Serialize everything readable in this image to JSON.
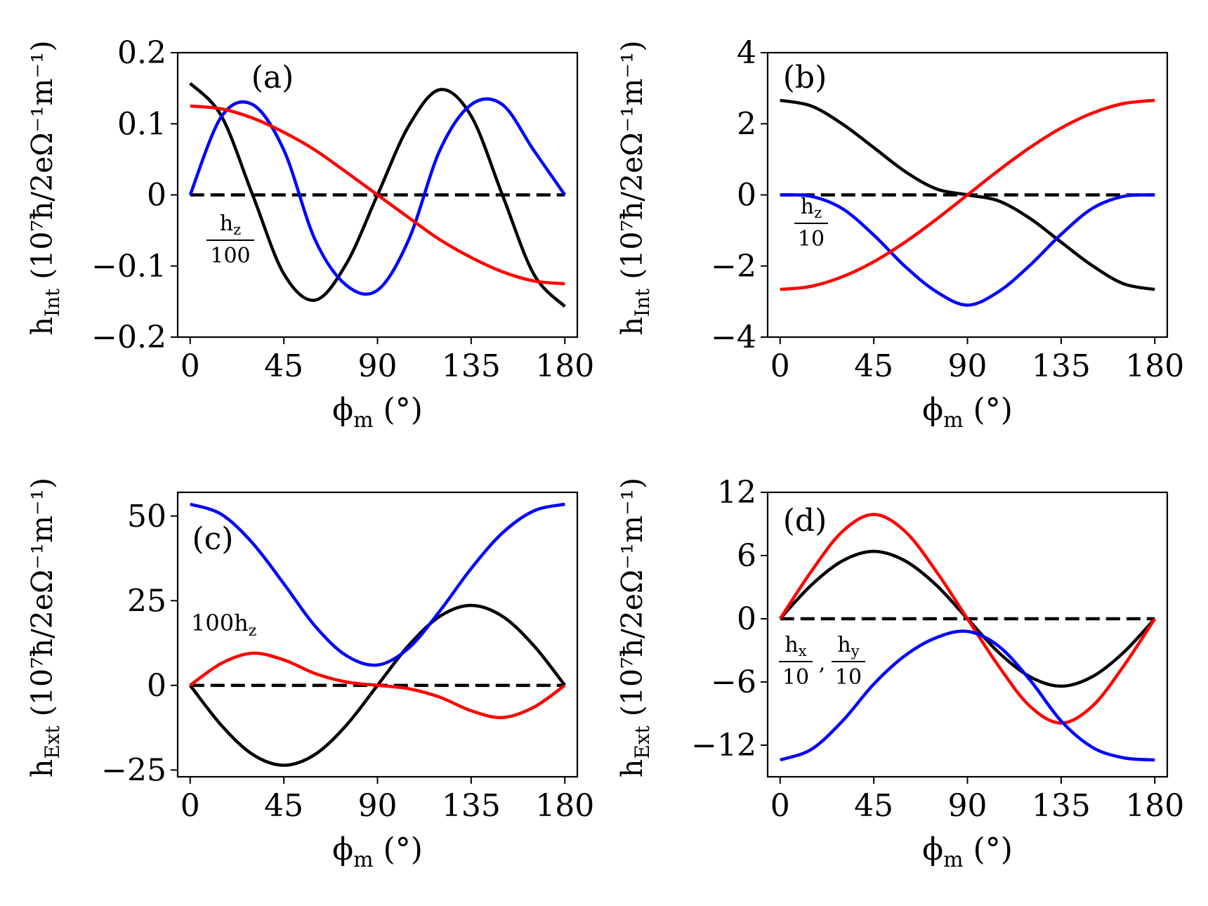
{
  "chart_data": [
    {
      "id": "a",
      "type": "line",
      "panel_label": "(a)",
      "xlabel": "ϕm (°)",
      "xlabel_main": "ϕ",
      "xlabel_sub": "m",
      "xlabel_unit": " (°)",
      "ylabel": "hInt (10⁷ħ/2eΩ⁻¹m⁻¹)",
      "ylabel_main": "h",
      "ylabel_sub": "Int",
      "ylabel_unit": " (10⁷ħ/2eΩ⁻¹m⁻¹)",
      "xlim": [
        -6,
        186
      ],
      "ylim": [
        -0.2,
        0.2
      ],
      "xticks": [
        0,
        45,
        90,
        135,
        180
      ],
      "xtick_labels": [
        "0",
        "45",
        "90",
        "135",
        "180"
      ],
      "yticks": [
        0.2,
        0.1,
        0,
        -0.1,
        -0.2
      ],
      "ytick_labels": [
        "0.2",
        "0.1",
        "0",
        "−0.1",
        "−0.2"
      ],
      "annotation": {
        "kind": "frac",
        "top": "hz",
        "top_main": "h",
        "top_sub": "z",
        "bottom": "100"
      },
      "x": [
        0,
        15,
        30,
        45,
        60,
        75,
        90,
        105,
        120,
        135,
        150,
        165,
        180
      ],
      "series": [
        {
          "name": "black",
          "color": "#000000",
          "values": [
            0.157,
            0.111,
            0,
            -0.111,
            -0.148,
            -0.097,
            0,
            0.097,
            0.148,
            0.111,
            0,
            -0.111,
            -0.157
          ]
        },
        {
          "name": "blue",
          "color": "#0000ff",
          "values": [
            0,
            0.11,
            0.127,
            0.063,
            -0.063,
            -0.127,
            -0.134,
            -0.063,
            0.063,
            0.127,
            0.127,
            0.063,
            0
          ]
        },
        {
          "name": "red",
          "color": "#ff0000",
          "values": [
            0.125,
            0.121,
            0.108,
            0.088,
            0.063,
            0.032,
            0,
            -0.032,
            -0.063,
            -0.088,
            -0.108,
            -0.121,
            -0.125
          ]
        },
        {
          "name": "zero",
          "color": "#000000",
          "dashed": true,
          "values": [
            0,
            0,
            0,
            0,
            0,
            0,
            0,
            0,
            0,
            0,
            0,
            0,
            0
          ]
        }
      ]
    },
    {
      "id": "b",
      "type": "line",
      "panel_label": "(b)",
      "xlabel": "ϕm (°)",
      "xlabel_main": "ϕ",
      "xlabel_sub": "m",
      "xlabel_unit": " (°)",
      "ylabel": "hInt (10⁷ħ/2eΩ⁻¹m⁻¹)",
      "ylabel_main": "h",
      "ylabel_sub": "Int",
      "ylabel_unit": " (10⁷ħ/2eΩ⁻¹m⁻¹)",
      "xlim": [
        -6,
        186
      ],
      "ylim": [
        -4,
        4
      ],
      "xticks": [
        0,
        45,
        90,
        135,
        180
      ],
      "xtick_labels": [
        "0",
        "45",
        "90",
        "135",
        "180"
      ],
      "yticks": [
        4,
        2,
        0,
        -2,
        -4
      ],
      "ytick_labels": [
        "4",
        "2",
        "0",
        "−2",
        "−4"
      ],
      "annotation": {
        "kind": "frac",
        "top": "hz",
        "top_main": "h",
        "top_sub": "z",
        "bottom": "10"
      },
      "x": [
        0,
        15,
        30,
        45,
        60,
        75,
        90,
        105,
        120,
        135,
        150,
        165,
        180
      ],
      "series": [
        {
          "name": "black",
          "color": "#000000",
          "values": [
            2.66,
            2.5,
            1.99,
            1.33,
            0.66,
            0.17,
            0,
            -0.17,
            -0.66,
            -1.33,
            -1.99,
            -2.5,
            -2.66
          ]
        },
        {
          "name": "blue",
          "color": "#0000ff",
          "values": [
            0,
            -0.04,
            -0.39,
            -1.13,
            -2.01,
            -2.72,
            -3.1,
            -2.72,
            -1.98,
            -1.11,
            -0.38,
            -0.04,
            0
          ]
        },
        {
          "name": "red",
          "color": "#ff0000",
          "values": [
            -2.66,
            -2.57,
            -2.3,
            -1.88,
            -1.33,
            -0.69,
            0,
            0.69,
            1.33,
            1.88,
            2.3,
            2.57,
            2.66
          ]
        },
        {
          "name": "zero",
          "color": "#000000",
          "dashed": true,
          "values": [
            0,
            0,
            0,
            0,
            0,
            0,
            0,
            0,
            0,
            0,
            0,
            0,
            0
          ]
        }
      ]
    },
    {
      "id": "c",
      "type": "line",
      "panel_label": "(c)",
      "xlabel": "ϕm (°)",
      "xlabel_main": "ϕ",
      "xlabel_sub": "m",
      "xlabel_unit": " (°)",
      "ylabel": "hExt (10⁷ħ/2eΩ⁻¹m⁻¹)",
      "ylabel_main": "h",
      "ylabel_sub": "Ext",
      "ylabel_unit": " (10⁷ħ/2eΩ⁻¹m⁻¹)",
      "xlim": [
        -6,
        186
      ],
      "ylim": [
        -27,
        57
      ],
      "xticks": [
        0,
        45,
        90,
        135,
        180
      ],
      "xtick_labels": [
        "0",
        "45",
        "90",
        "135",
        "180"
      ],
      "yticks": [
        50,
        25,
        0,
        -25
      ],
      "ytick_labels": [
        "50",
        "25",
        "0",
        "−25"
      ],
      "annotation": {
        "kind": "text",
        "main": "100h",
        "sub": "z"
      },
      "x": [
        0,
        15,
        30,
        45,
        60,
        75,
        90,
        105,
        120,
        135,
        150,
        165,
        180
      ],
      "series": [
        {
          "name": "black",
          "color": "#000000",
          "values": [
            0,
            -11.8,
            -20.4,
            -23.6,
            -20.4,
            -11.8,
            0,
            11.8,
            20.4,
            23.6,
            20.4,
            11.8,
            0
          ]
        },
        {
          "name": "blue",
          "color": "#0000ff",
          "values": [
            53.5,
            50.5,
            42.0,
            30.0,
            17.5,
            8.8,
            6.0,
            11.0,
            22.0,
            34.5,
            45.0,
            51.5,
            53.5
          ]
        },
        {
          "name": "red",
          "color": "#ff0000",
          "values": [
            0,
            6.5,
            9.5,
            7.5,
            3.5,
            1.0,
            0,
            -1.0,
            -3.5,
            -7.5,
            -9.5,
            -6.5,
            0
          ]
        },
        {
          "name": "zero",
          "color": "#000000",
          "dashed": true,
          "values": [
            0,
            0,
            0,
            0,
            0,
            0,
            0,
            0,
            0,
            0,
            0,
            0,
            0
          ]
        }
      ]
    },
    {
      "id": "d",
      "type": "line",
      "panel_label": "(d)",
      "xlabel": "ϕm (°)",
      "xlabel_main": "ϕ",
      "xlabel_sub": "m",
      "xlabel_unit": " (°)",
      "ylabel": "hExt (10⁷ħ/2eΩ⁻¹m⁻¹)",
      "ylabel_main": "h",
      "ylabel_sub": "Ext",
      "ylabel_unit": " (10⁷ħ/2eΩ⁻¹m⁻¹)",
      "xlim": [
        -6,
        186
      ],
      "ylim": [
        -15,
        12
      ],
      "xticks": [
        0,
        45,
        90,
        135,
        180
      ],
      "xtick_labels": [
        "0",
        "45",
        "90",
        "135",
        "180"
      ],
      "yticks": [
        12,
        6,
        0,
        -6,
        -12
      ],
      "ytick_labels": [
        "12",
        "6",
        "0",
        "−6",
        "−12"
      ],
      "annotation": {
        "kind": "frac2",
        "top1": "hx",
        "top1_main": "h",
        "top1_sub": "x",
        "bottom1": "10",
        "separator": ",",
        "top2": "hy",
        "top2_main": "h",
        "top2_sub": "y",
        "bottom2": "10"
      },
      "x": [
        0,
        15,
        30,
        45,
        60,
        75,
        90,
        105,
        120,
        135,
        150,
        165,
        180
      ],
      "series": [
        {
          "name": "black",
          "color": "#000000",
          "values": [
            0,
            3.2,
            5.5,
            6.4,
            5.5,
            3.2,
            0,
            -3.2,
            -5.5,
            -6.4,
            -5.5,
            -3.2,
            0
          ]
        },
        {
          "name": "red",
          "color": "#ff0000",
          "values": [
            0,
            4.5,
            8.3,
            9.9,
            8.3,
            4.5,
            0,
            -4.5,
            -8.3,
            -9.9,
            -8.3,
            -4.5,
            0
          ]
        },
        {
          "name": "blue",
          "color": "#0000ff",
          "values": [
            -13.4,
            -12.4,
            -9.7,
            -6.2,
            -3.5,
            -1.8,
            -1.2,
            -2.6,
            -5.8,
            -9.7,
            -12.2,
            -13.2,
            -13.4
          ]
        },
        {
          "name": "zero",
          "color": "#000000",
          "dashed": true,
          "values": [
            0,
            0,
            0,
            0,
            0,
            0,
            0,
            0,
            0,
            0,
            0,
            0,
            0
          ]
        }
      ]
    }
  ]
}
